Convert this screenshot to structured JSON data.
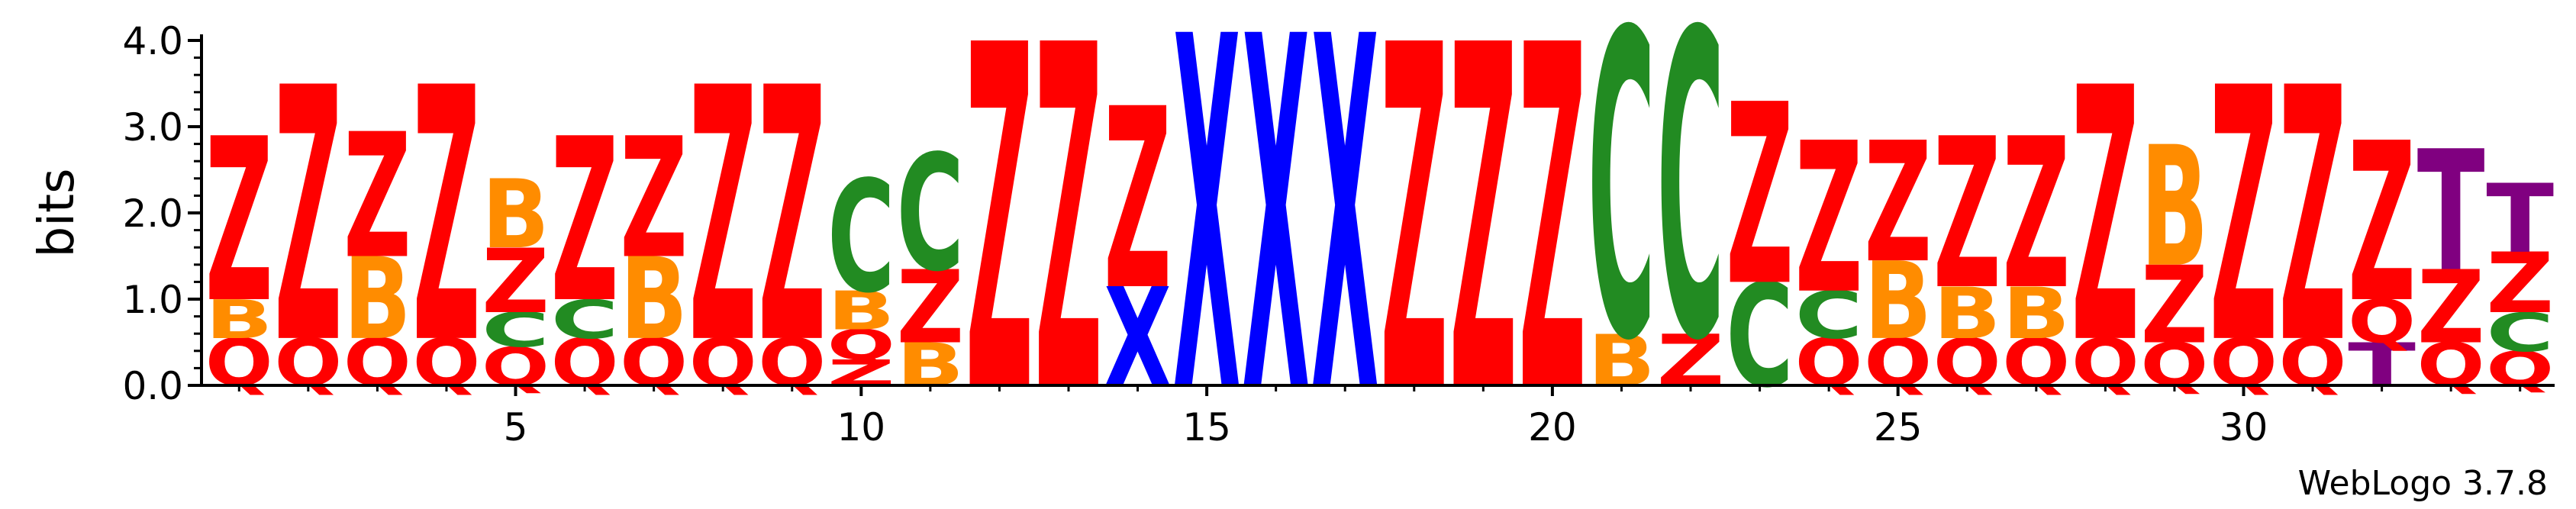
{
  "chart_data": {
    "type": "sequence-logo",
    "ylabel": "bits",
    "ylim": [
      0,
      4.0
    ],
    "y_ticks": [
      "0.0",
      "1.0",
      "2.0",
      "3.0",
      "4.0"
    ],
    "x_ticks": [
      5,
      10,
      15,
      20,
      25,
      30
    ],
    "credit": "WebLogo 3.7.8",
    "colors": {
      "Z": "#ff0000",
      "Q": "#ff0000",
      "B": "#ff8c00",
      "C": "#228b22",
      "X": "#0000ff",
      "T": "#800080"
    },
    "positions": [
      {
        "pos": 1,
        "stack": [
          {
            "letter": "Q",
            "bits": 0.55
          },
          {
            "letter": "B",
            "bits": 0.45
          },
          {
            "letter": "Z",
            "bits": 1.9
          }
        ]
      },
      {
        "pos": 2,
        "stack": [
          {
            "letter": "Q",
            "bits": 0.55
          },
          {
            "letter": "Z",
            "bits": 2.95
          }
        ]
      },
      {
        "pos": 3,
        "stack": [
          {
            "letter": "Q",
            "bits": 0.55
          },
          {
            "letter": "B",
            "bits": 0.95
          },
          {
            "letter": "Z",
            "bits": 1.45
          }
        ]
      },
      {
        "pos": 4,
        "stack": [
          {
            "letter": "Q",
            "bits": 0.55
          },
          {
            "letter": "Z",
            "bits": 2.95
          }
        ]
      },
      {
        "pos": 5,
        "stack": [
          {
            "letter": "Q",
            "bits": 0.45
          },
          {
            "letter": "C",
            "bits": 0.4
          },
          {
            "letter": "Z",
            "bits": 0.75
          },
          {
            "letter": "B",
            "bits": 0.8
          }
        ]
      },
      {
        "pos": 6,
        "stack": [
          {
            "letter": "Q",
            "bits": 0.55
          },
          {
            "letter": "C",
            "bits": 0.45
          },
          {
            "letter": "Z",
            "bits": 1.9
          }
        ]
      },
      {
        "pos": 7,
        "stack": [
          {
            "letter": "Q",
            "bits": 0.55
          },
          {
            "letter": "B",
            "bits": 0.95
          },
          {
            "letter": "Z",
            "bits": 1.4
          }
        ]
      },
      {
        "pos": 8,
        "stack": [
          {
            "letter": "Q",
            "bits": 0.55
          },
          {
            "letter": "Z",
            "bits": 2.95
          }
        ]
      },
      {
        "pos": 9,
        "stack": [
          {
            "letter": "Q",
            "bits": 0.55
          },
          {
            "letter": "Z",
            "bits": 2.95
          }
        ]
      },
      {
        "pos": 10,
        "stack": [
          {
            "letter": "Z",
            "bits": 0.3
          },
          {
            "letter": "Q",
            "bits": 0.35
          },
          {
            "letter": "B",
            "bits": 0.45
          },
          {
            "letter": "C",
            "bits": 1.3
          }
        ]
      },
      {
        "pos": 11,
        "stack": [
          {
            "letter": "B",
            "bits": 0.5
          },
          {
            "letter": "Z",
            "bits": 0.85
          },
          {
            "letter": "C",
            "bits": 1.35
          }
        ]
      },
      {
        "pos": 12,
        "stack": [
          {
            "letter": "Z",
            "bits": 4.0
          }
        ]
      },
      {
        "pos": 13,
        "stack": [
          {
            "letter": "Z",
            "bits": 4.0
          }
        ]
      },
      {
        "pos": 14,
        "stack": [
          {
            "letter": "X",
            "bits": 1.15
          },
          {
            "letter": "Z",
            "bits": 2.1
          }
        ]
      },
      {
        "pos": 15,
        "stack": [
          {
            "letter": "X",
            "bits": 4.1
          }
        ]
      },
      {
        "pos": 16,
        "stack": [
          {
            "letter": "X",
            "bits": 4.1
          }
        ]
      },
      {
        "pos": 17,
        "stack": [
          {
            "letter": "X",
            "bits": 4.1
          }
        ]
      },
      {
        "pos": 18,
        "stack": [
          {
            "letter": "Z",
            "bits": 4.0
          }
        ]
      },
      {
        "pos": 19,
        "stack": [
          {
            "letter": "Z",
            "bits": 4.0
          }
        ]
      },
      {
        "pos": 20,
        "stack": [
          {
            "letter": "Z",
            "bits": 4.0
          }
        ]
      },
      {
        "pos": 21,
        "stack": [
          {
            "letter": "B",
            "bits": 0.6
          },
          {
            "letter": "C",
            "bits": 3.55
          }
        ]
      },
      {
        "pos": 22,
        "stack": [
          {
            "letter": "Z",
            "bits": 0.6
          },
          {
            "letter": "C",
            "bits": 3.55
          }
        ]
      },
      {
        "pos": 23,
        "stack": [
          {
            "letter": "C",
            "bits": 1.2
          },
          {
            "letter": "Z",
            "bits": 2.1
          }
        ]
      },
      {
        "pos": 24,
        "stack": [
          {
            "letter": "Q",
            "bits": 0.55
          },
          {
            "letter": "C",
            "bits": 0.55
          },
          {
            "letter": "Z",
            "bits": 1.75
          }
        ]
      },
      {
        "pos": 25,
        "stack": [
          {
            "letter": "Q",
            "bits": 0.55
          },
          {
            "letter": "B",
            "bits": 0.9
          },
          {
            "letter": "Z",
            "bits": 1.4
          }
        ]
      },
      {
        "pos": 26,
        "stack": [
          {
            "letter": "Q",
            "bits": 0.55
          },
          {
            "letter": "B",
            "bits": 0.6
          },
          {
            "letter": "Z",
            "bits": 1.75
          }
        ]
      },
      {
        "pos": 27,
        "stack": [
          {
            "letter": "Q",
            "bits": 0.55
          },
          {
            "letter": "B",
            "bits": 0.6
          },
          {
            "letter": "Z",
            "bits": 1.75
          }
        ]
      },
      {
        "pos": 28,
        "stack": [
          {
            "letter": "Q",
            "bits": 0.55
          },
          {
            "letter": "Z",
            "bits": 2.95
          }
        ]
      },
      {
        "pos": 29,
        "stack": [
          {
            "letter": "Q",
            "bits": 0.5
          },
          {
            "letter": "Z",
            "bits": 0.9
          },
          {
            "letter": "B",
            "bits": 1.4
          }
        ]
      },
      {
        "pos": 30,
        "stack": [
          {
            "letter": "Q",
            "bits": 0.55
          },
          {
            "letter": "Z",
            "bits": 2.95
          }
        ]
      },
      {
        "pos": 31,
        "stack": [
          {
            "letter": "Q",
            "bits": 0.55
          },
          {
            "letter": "Z",
            "bits": 2.95
          }
        ]
      },
      {
        "pos": 32,
        "stack": [
          {
            "letter": "T",
            "bits": 0.5
          },
          {
            "letter": "Q",
            "bits": 0.5
          },
          {
            "letter": "Z",
            "bits": 1.85
          }
        ]
      },
      {
        "pos": 33,
        "stack": [
          {
            "letter": "Q",
            "bits": 0.5
          },
          {
            "letter": "Z",
            "bits": 0.85
          },
          {
            "letter": "T",
            "bits": 1.4
          }
        ]
      },
      {
        "pos": 34,
        "stack": [
          {
            "letter": "Q",
            "bits": 0.4
          },
          {
            "letter": "C",
            "bits": 0.45
          },
          {
            "letter": "Z",
            "bits": 0.7
          },
          {
            "letter": "T",
            "bits": 0.8
          }
        ]
      }
    ]
  }
}
